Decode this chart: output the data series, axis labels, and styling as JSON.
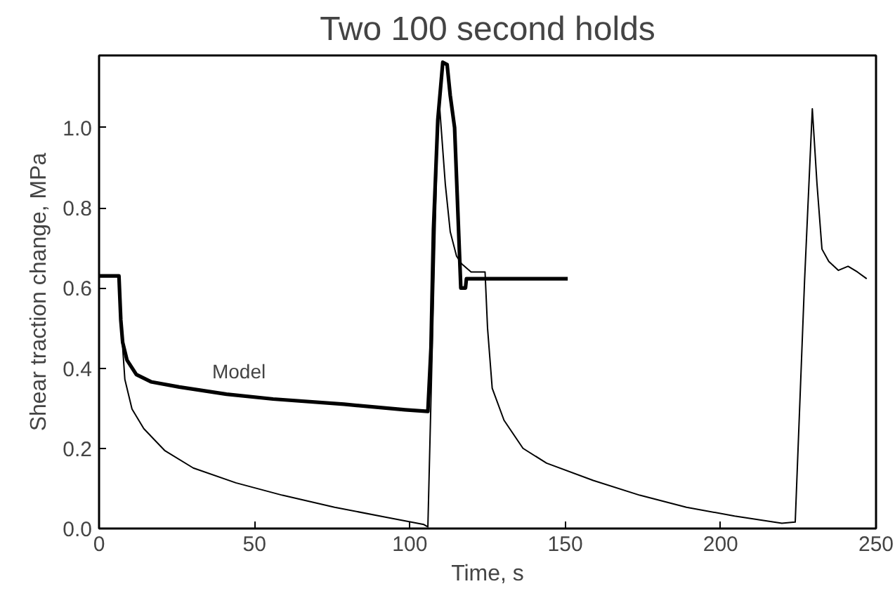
{
  "chart_data": {
    "type": "line",
    "title": "Two 100 second holds",
    "xlabel": "Time, s",
    "ylabel": "Shear traction change, MPa",
    "xlim": [
      0,
      250
    ],
    "ylim": [
      0,
      1.18
    ],
    "xticks": [
      0,
      50,
      100,
      150,
      200,
      250
    ],
    "yticks": [
      {
        "value": 0,
        "label": "0.0"
      },
      0.2,
      0.4,
      0.6,
      0.8,
      {
        "value": 1,
        "label": "1.0"
      }
    ],
    "annotations": [
      {
        "text": "Model",
        "x": 45,
        "y": 0.33
      }
    ],
    "series": [
      {
        "color": "#000000",
        "x": [
          0,
          6.4,
          7,
          8.3,
          10.6,
          14.4,
          21.2,
          30.3,
          44,
          59,
          75.8,
          92.4,
          104.5,
          105.8,
          109,
          109.6,
          111.4,
          113,
          115,
          116.7,
          119.7,
          124.2,
          125,
          126.5,
          130.3,
          136.4,
          144,
          159,
          174,
          189,
          204.5,
          219.7,
          224,
          227,
          229.5,
          231,
          232.6,
          234.8,
          237.9,
          241,
          244,
          247
        ],
        "values": [
          0.63,
          0.63,
          0.52,
          0.372,
          0.298,
          0.249,
          0.194,
          0.151,
          0.114,
          0.083,
          0.053,
          0.028,
          0.01,
          0.004,
          1.02,
          1.05,
          0.86,
          0.74,
          0.68,
          0.66,
          0.64,
          0.64,
          0.5,
          0.35,
          0.27,
          0.2,
          0.163,
          0.12,
          0.083,
          0.053,
          0.031,
          0.013,
          0.016,
          0.617,
          1.047,
          0.86,
          0.697,
          0.666,
          0.644,
          0.654,
          0.64,
          0.623
        ]
      },
      {
        "color": "#000000",
        "x": [
          0,
          6.4,
          7,
          7.6,
          9,
          12,
          16.7,
          25.8,
          41,
          56,
          78.8,
          98.5,
          105.8,
          106.8,
          107.6,
          109,
          110.6,
          112,
          113,
          114.4,
          115.2,
          116,
          116.4,
          117.9,
          118.2,
          150.8
        ],
        "values": [
          0.63,
          0.63,
          0.52,
          0.464,
          0.42,
          0.384,
          0.366,
          0.353,
          0.335,
          0.323,
          0.31,
          0.296,
          0.292,
          0.45,
          0.746,
          1.02,
          1.163,
          1.157,
          1.08,
          1.0,
          0.84,
          0.68,
          0.6,
          0.6,
          0.623,
          0.623
        ]
      }
    ]
  }
}
